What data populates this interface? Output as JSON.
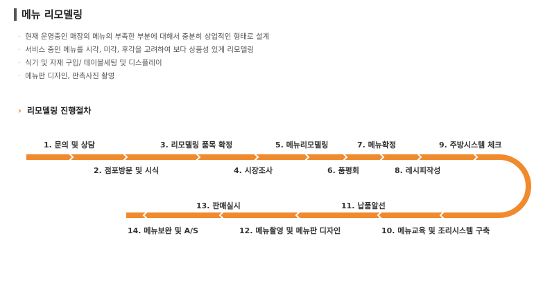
{
  "section": {
    "title": "메뉴 리모델링",
    "bullets": [
      "현재 운영중인 매장의 메뉴의 부족한 부분에 대해서 충분히 상업적인 형태로 설계",
      "서비스 중인 메뉴를 시각, 미각, 후각을 고려하여 보다 상품성 있게 리모델링",
      "식기 및 자재 구입/ 테이블세팅 및 디스플레이",
      "메뉴판 디자인, 판촉사진 촬영"
    ]
  },
  "process": {
    "title": "리모델링 진행절차",
    "accent_color": "#f08a2c",
    "steps": [
      "1. 문의 및 상담",
      "2. 점포방문 및 시식",
      "3. 리모델링 품목 확정",
      "4. 시장조사",
      "5. 메뉴리모델링",
      "6. 품평회",
      "7. 메뉴확정",
      "8. 레시피작성",
      "9. 주방시스템 체크",
      "10. 메뉴교육 및 조리시스템 구축",
      "11. 납품알선",
      "12. 메뉴촬영 및 메뉴판 디자인",
      "13. 판매실시",
      "14. 메뉴보완 및 A/S"
    ]
  }
}
